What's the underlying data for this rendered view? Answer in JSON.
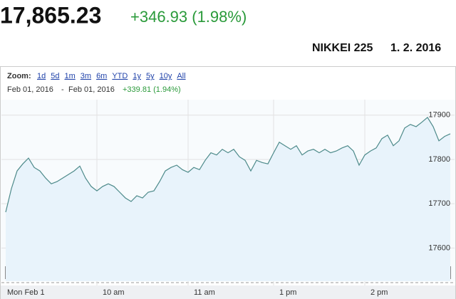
{
  "header": {
    "price": "17,865.23",
    "change": "+346.93 (1.98%)",
    "index_name": "NIKKEI 225",
    "date": "1. 2. 2016"
  },
  "toolbar": {
    "zoom_label": "Zoom:",
    "zoom_options": [
      "1d",
      "5d",
      "1m",
      "3m",
      "6m",
      "YTD",
      "1y",
      "5y",
      "10y",
      "All"
    ],
    "range_from": "Feb 01, 2016",
    "range_sep": "-",
    "range_to": "Feb 01, 2016",
    "range_change": "+339.81 (1.94%)"
  },
  "navigator": {
    "left_button": "W",
    "right_button": "C"
  },
  "chart_data": {
    "type": "area",
    "color": "#4d8a8a",
    "fill": "#e8f3fb",
    "grid": true,
    "ylim": [
      17525,
      17935
    ],
    "yticks": [
      17600,
      17700,
      17800,
      17900
    ],
    "categories": [
      "Mon Feb 1",
      null,
      null,
      null,
      null,
      null,
      null,
      null,
      null,
      null,
      null,
      null,
      null,
      null,
      null,
      null,
      "10 am",
      null,
      null,
      null,
      null,
      null,
      null,
      null,
      null,
      null,
      null,
      null,
      null,
      null,
      null,
      null,
      "11 am",
      null,
      null,
      null,
      null,
      null,
      null,
      null,
      null,
      null,
      null,
      null,
      null,
      null,
      null,
      "1 pm",
      null,
      null,
      null,
      null,
      null,
      null,
      null,
      null,
      null,
      null,
      null,
      null,
      null,
      null,
      null,
      "2 pm",
      null,
      null,
      null,
      null,
      null,
      null,
      null,
      null,
      null,
      null,
      null,
      null,
      null,
      null,
      null
    ],
    "values": [
      17681,
      17734,
      17774,
      17790,
      17803,
      17782,
      17774,
      17758,
      17745,
      17750,
      17758,
      17766,
      17774,
      17785,
      17758,
      17739,
      17729,
      17739,
      17745,
      17739,
      17726,
      17713,
      17705,
      17718,
      17713,
      17726,
      17729,
      17750,
      17774,
      17782,
      17787,
      17777,
      17771,
      17782,
      17777,
      17798,
      17815,
      17810,
      17823,
      17815,
      17823,
      17806,
      17798,
      17774,
      17798,
      17793,
      17790,
      17815,
      17839,
      17831,
      17823,
      17831,
      17810,
      17819,
      17823,
      17815,
      17823,
      17815,
      17819,
      17826,
      17831,
      17819,
      17787,
      17810,
      17819,
      17826,
      17847,
      17855,
      17831,
      17842,
      17871,
      17879,
      17874,
      17884,
      17895,
      17874,
      17842,
      17852,
      17858
    ]
  }
}
